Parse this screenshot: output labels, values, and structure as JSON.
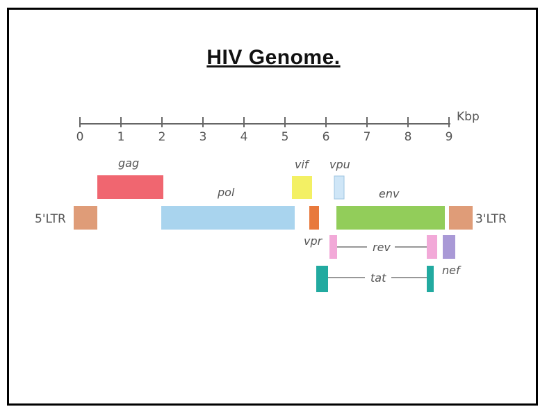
{
  "slide": {
    "title": "HIV Genome."
  },
  "diagram": {
    "scale": {
      "unit": "Kbp",
      "ticks": [
        "0",
        "1",
        "2",
        "3",
        "4",
        "5",
        "6",
        "7",
        "8",
        "9"
      ]
    },
    "ltr_left": "5'LTR",
    "ltr_right": "3'LTR",
    "genes": {
      "gag": "gag",
      "pol": "pol",
      "vif": "vif",
      "vpu": "vpu",
      "env": "env",
      "vpr": "vpr",
      "rev": "rev",
      "tat": "tat",
      "nef": "nef"
    },
    "colors": {
      "gag": "#f06670",
      "pol": "#a9d4ee",
      "vif": "#f3f064",
      "vpu": "#cfe6f7",
      "env": "#92cd5a",
      "vpr": "#e8793c",
      "rev": "#f2a9d8",
      "tat": "#22aaa0",
      "nef": "#a999d6",
      "ltr": "#df9c78"
    }
  }
}
